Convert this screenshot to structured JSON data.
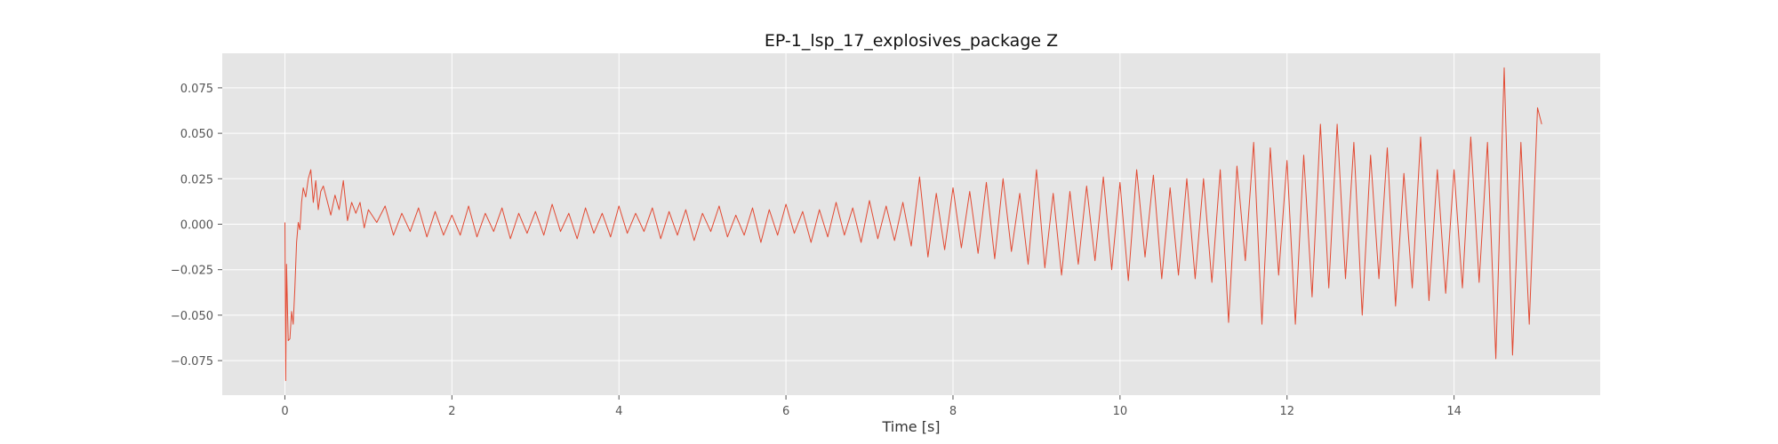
{
  "chart_data": {
    "type": "line",
    "title": "EP-1_lsp_17_explosives_package Z",
    "xlabel": "Time [s]",
    "ylabel": "",
    "xlim": [
      -0.75,
      15.75
    ],
    "ylim": [
      -0.094,
      0.094
    ],
    "xticks": [
      0,
      2,
      4,
      6,
      8,
      10,
      12,
      14
    ],
    "yticks": [
      -0.075,
      -0.05,
      -0.025,
      0.0,
      0.025,
      0.05,
      0.075
    ],
    "xtick_labels": [
      "0",
      "2",
      "4",
      "6",
      "8",
      "10",
      "12",
      "14"
    ],
    "ytick_labels": [
      "−0.075",
      "−0.050",
      "−0.025",
      "0.000",
      "0.025",
      "0.050",
      "0.075"
    ],
    "grid": true,
    "colors": {
      "background": "#e5e5e5",
      "grid": "#ffffff",
      "line": "#e24a33"
    },
    "series": [
      {
        "x": [
          0.0,
          0.01,
          0.02,
          0.04,
          0.06,
          0.08,
          0.1,
          0.12,
          0.14,
          0.16,
          0.18,
          0.2,
          0.22,
          0.25,
          0.28,
          0.31,
          0.34,
          0.37,
          0.4,
          0.43,
          0.46,
          0.5,
          0.55,
          0.6,
          0.65,
          0.7,
          0.75,
          0.8,
          0.85,
          0.9,
          0.95,
          1.0,
          1.1,
          1.2,
          1.3,
          1.4,
          1.5,
          1.6,
          1.7,
          1.8,
          1.9,
          2.0,
          2.1,
          2.2,
          2.3,
          2.4,
          2.5,
          2.6,
          2.7,
          2.8,
          2.9,
          3.0,
          3.1,
          3.2,
          3.3,
          3.4,
          3.5,
          3.6,
          3.7,
          3.8,
          3.9,
          4.0,
          4.1,
          4.2,
          4.3,
          4.4,
          4.5,
          4.6,
          4.7,
          4.8,
          4.9,
          5.0,
          5.1,
          5.2,
          5.3,
          5.4,
          5.5,
          5.6,
          5.7,
          5.8,
          5.9,
          6.0,
          6.1,
          6.2,
          6.3,
          6.4,
          6.5,
          6.6,
          6.7,
          6.8,
          6.9,
          7.0,
          7.1,
          7.2,
          7.3,
          7.4,
          7.5,
          7.6,
          7.7,
          7.8,
          7.9,
          8.0,
          8.1,
          8.2,
          8.3,
          8.4,
          8.5,
          8.6,
          8.7,
          8.8,
          8.9,
          9.0,
          9.1,
          9.2,
          9.3,
          9.4,
          9.5,
          9.6,
          9.7,
          9.8,
          9.9,
          10.0,
          10.1,
          10.2,
          10.3,
          10.4,
          10.5,
          10.6,
          10.7,
          10.8,
          10.9,
          11.0,
          11.1,
          11.2,
          11.3,
          11.4,
          11.5,
          11.6,
          11.7,
          11.8,
          11.9,
          12.0,
          12.1,
          12.2,
          12.3,
          12.4,
          12.5,
          12.6,
          12.7,
          12.8,
          12.9,
          13.0,
          13.1,
          13.2,
          13.3,
          13.4,
          13.5,
          13.6,
          13.7,
          13.8,
          13.9,
          14.0,
          14.1,
          14.2,
          14.3,
          14.4,
          14.5,
          14.6,
          14.7,
          14.8,
          14.9,
          15.0,
          15.05
        ],
        "y": [
          0.001,
          -0.086,
          -0.022,
          -0.064,
          -0.063,
          -0.048,
          -0.055,
          -0.035,
          -0.01,
          0.001,
          -0.003,
          0.012,
          0.02,
          0.015,
          0.025,
          0.03,
          0.012,
          0.024,
          0.008,
          0.018,
          0.021,
          0.014,
          0.005,
          0.016,
          0.008,
          0.024,
          0.002,
          0.012,
          0.006,
          0.012,
          -0.002,
          0.008,
          0.001,
          0.01,
          -0.006,
          0.006,
          -0.004,
          0.009,
          -0.007,
          0.007,
          -0.006,
          0.005,
          -0.006,
          0.01,
          -0.007,
          0.006,
          -0.004,
          0.009,
          -0.008,
          0.006,
          -0.005,
          0.007,
          -0.006,
          0.011,
          -0.004,
          0.006,
          -0.008,
          0.009,
          -0.005,
          0.006,
          -0.007,
          0.01,
          -0.005,
          0.006,
          -0.004,
          0.009,
          -0.008,
          0.007,
          -0.006,
          0.008,
          -0.009,
          0.006,
          -0.004,
          0.01,
          -0.007,
          0.005,
          -0.006,
          0.009,
          -0.01,
          0.008,
          -0.006,
          0.011,
          -0.005,
          0.007,
          -0.01,
          0.008,
          -0.007,
          0.012,
          -0.006,
          0.009,
          -0.01,
          0.013,
          -0.008,
          0.01,
          -0.009,
          0.012,
          -0.012,
          0.026,
          -0.018,
          0.017,
          -0.014,
          0.02,
          -0.013,
          0.018,
          -0.016,
          0.023,
          -0.019,
          0.025,
          -0.015,
          0.017,
          -0.022,
          0.03,
          -0.024,
          0.017,
          -0.028,
          0.018,
          -0.022,
          0.021,
          -0.02,
          0.026,
          -0.025,
          0.023,
          -0.031,
          0.03,
          -0.018,
          0.027,
          -0.03,
          0.02,
          -0.028,
          0.025,
          -0.03,
          0.025,
          -0.032,
          0.03,
          -0.054,
          0.032,
          -0.02,
          0.045,
          -0.055,
          0.042,
          -0.028,
          0.035,
          -0.055,
          0.038,
          -0.04,
          0.055,
          -0.035,
          0.055,
          -0.03,
          0.045,
          -0.05,
          0.038,
          -0.03,
          0.042,
          -0.045,
          0.028,
          -0.035,
          0.048,
          -0.042,
          0.03,
          -0.038,
          0.03,
          -0.035,
          0.048,
          -0.032,
          0.045,
          -0.074,
          0.086,
          -0.072,
          0.045,
          -0.055,
          0.064,
          0.055
        ]
      }
    ]
  }
}
